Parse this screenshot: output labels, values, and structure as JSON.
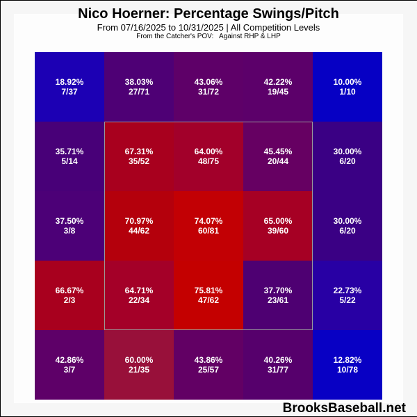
{
  "header": {
    "title": "Nico Hoerner: Percentage Swings/Pitch",
    "subtitle": "From 07/16/2025 to 10/31/2025 | All Competition Levels",
    "subsubtitle": "From the Catcher's POV:   Against RHP & LHP"
  },
  "brand": "BrooksBaseball.net",
  "colors": {
    "low": "#0000cc",
    "high": "#cc0000",
    "zone_border": "#9a9a9a"
  },
  "cells": [
    {
      "pct": "18.92%",
      "frac": "7/37",
      "color": "#1c00b4"
    },
    {
      "pct": "38.03%",
      "frac": "27/71",
      "color": "#4e0075"
    },
    {
      "pct": "43.06%",
      "frac": "31/72",
      "color": "#5e0068"
    },
    {
      "pct": "42.22%",
      "frac": "19/45",
      "color": "#5c006a"
    },
    {
      "pct": "10.00%",
      "frac": "1/10",
      "color": "#0600c4"
    },
    {
      "pct": "35.71%",
      "frac": "5/14",
      "color": "#480078"
    },
    {
      "pct": "67.31%",
      "frac": "35/52",
      "color": "#a8001e"
    },
    {
      "pct": "64.00%",
      "frac": "48/75",
      "color": "#a2002a"
    },
    {
      "pct": "45.45%",
      "frac": "20/44",
      "color": "#660062"
    },
    {
      "pct": "30.00%",
      "frac": "6/20",
      "color": "#3a0084"
    },
    {
      "pct": "37.50%",
      "frac": "3/8",
      "color": "#4c0077"
    },
    {
      "pct": "70.97%",
      "frac": "44/62",
      "color": "#b4000c"
    },
    {
      "pct": "74.07%",
      "frac": "60/81",
      "color": "#c20004"
    },
    {
      "pct": "65.00%",
      "frac": "39/60",
      "color": "#a60024"
    },
    {
      "pct": "30.00%",
      "frac": "6/20",
      "color": "#3a0084"
    },
    {
      "pct": "66.67%",
      "frac": "2/3",
      "color": "#a8001e"
    },
    {
      "pct": "64.71%",
      "frac": "22/34",
      "color": "#a40028"
    },
    {
      "pct": "75.81%",
      "frac": "47/62",
      "color": "#c40000"
    },
    {
      "pct": "37.70%",
      "frac": "23/61",
      "color": "#4e0072"
    },
    {
      "pct": "22.73%",
      "frac": "5/22",
      "color": "#2800a4"
    },
    {
      "pct": "42.86%",
      "frac": "3/7",
      "color": "#5e0068"
    },
    {
      "pct": "60.00%",
      "frac": "21/35",
      "color": "#98103a"
    },
    {
      "pct": "43.86%",
      "frac": "25/57",
      "color": "#620064"
    },
    {
      "pct": "40.26%",
      "frac": "31/77",
      "color": "#56006c"
    },
    {
      "pct": "12.82%",
      "frac": "10/78",
      "color": "#0800c4"
    }
  ],
  "chart_data": {
    "type": "heatmap",
    "title": "Nico Hoerner: Percentage Swings/Pitch",
    "subtitle": "From 07/16/2025 to 10/31/2025 | All Competition Levels",
    "note": "From the Catcher's POV: Against RHP & LHP",
    "rows": 5,
    "cols": 5,
    "strike_zone": {
      "rows": [
        1,
        3
      ],
      "cols": [
        1,
        3
      ]
    },
    "values": [
      [
        18.92,
        38.03,
        43.06,
        42.22,
        10.0
      ],
      [
        35.71,
        67.31,
        64.0,
        45.45,
        30.0
      ],
      [
        37.5,
        70.97,
        74.07,
        65.0,
        30.0
      ],
      [
        66.67,
        64.71,
        75.81,
        37.7,
        22.73
      ],
      [
        42.86,
        60.0,
        43.86,
        40.26,
        12.82
      ]
    ],
    "counts": [
      [
        "7/37",
        "27/71",
        "31/72",
        "19/45",
        "1/10"
      ],
      [
        "5/14",
        "35/52",
        "48/75",
        "20/44",
        "6/20"
      ],
      [
        "3/8",
        "44/62",
        "60/81",
        "39/60",
        "6/20"
      ],
      [
        "2/3",
        "22/34",
        "47/62",
        "23/61",
        "5/22"
      ],
      [
        "3/7",
        "21/35",
        "25/57",
        "31/77",
        "10/78"
      ]
    ],
    "colorscale": [
      "#0000cc",
      "#cc0000"
    ],
    "source": "BrooksBaseball.net"
  }
}
